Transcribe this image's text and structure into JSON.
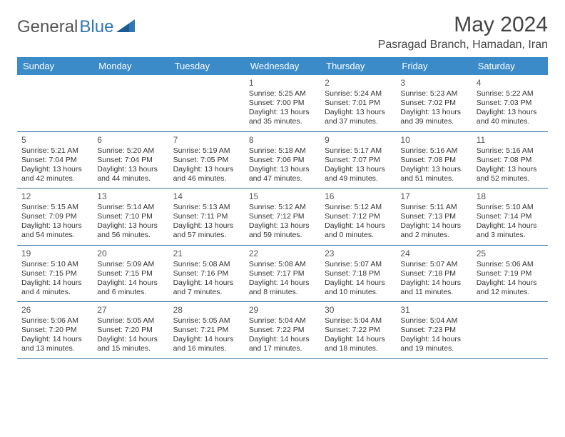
{
  "logo": {
    "text1": "General",
    "text2": "Blue"
  },
  "title": "May 2024",
  "subtitle": "Pasragad Branch, Hamadan, Iran",
  "colors": {
    "header_bg": "#3b8bc9",
    "header_text": "#ffffff",
    "divider": "#3b6fa0",
    "body_text": "#333333",
    "logo_gray": "#555555",
    "logo_blue": "#2f76b5",
    "page_bg": "#ffffff"
  },
  "fonts": {
    "title_size": 30,
    "subtitle_size": 16,
    "weekday_size": 13,
    "daynum_size": 12,
    "body_size": 10.5
  },
  "weekdays": [
    "Sunday",
    "Monday",
    "Tuesday",
    "Wednesday",
    "Thursday",
    "Friday",
    "Saturday"
  ],
  "weeks": [
    [
      {
        "n": "",
        "sr": "",
        "ss": "",
        "dl1": "",
        "dl2": ""
      },
      {
        "n": "",
        "sr": "",
        "ss": "",
        "dl1": "",
        "dl2": ""
      },
      {
        "n": "",
        "sr": "",
        "ss": "",
        "dl1": "",
        "dl2": ""
      },
      {
        "n": "1",
        "sr": "Sunrise: 5:25 AM",
        "ss": "Sunset: 7:00 PM",
        "dl1": "Daylight: 13 hours",
        "dl2": "and 35 minutes."
      },
      {
        "n": "2",
        "sr": "Sunrise: 5:24 AM",
        "ss": "Sunset: 7:01 PM",
        "dl1": "Daylight: 13 hours",
        "dl2": "and 37 minutes."
      },
      {
        "n": "3",
        "sr": "Sunrise: 5:23 AM",
        "ss": "Sunset: 7:02 PM",
        "dl1": "Daylight: 13 hours",
        "dl2": "and 39 minutes."
      },
      {
        "n": "4",
        "sr": "Sunrise: 5:22 AM",
        "ss": "Sunset: 7:03 PM",
        "dl1": "Daylight: 13 hours",
        "dl2": "and 40 minutes."
      }
    ],
    [
      {
        "n": "5",
        "sr": "Sunrise: 5:21 AM",
        "ss": "Sunset: 7:04 PM",
        "dl1": "Daylight: 13 hours",
        "dl2": "and 42 minutes."
      },
      {
        "n": "6",
        "sr": "Sunrise: 5:20 AM",
        "ss": "Sunset: 7:04 PM",
        "dl1": "Daylight: 13 hours",
        "dl2": "and 44 minutes."
      },
      {
        "n": "7",
        "sr": "Sunrise: 5:19 AM",
        "ss": "Sunset: 7:05 PM",
        "dl1": "Daylight: 13 hours",
        "dl2": "and 46 minutes."
      },
      {
        "n": "8",
        "sr": "Sunrise: 5:18 AM",
        "ss": "Sunset: 7:06 PM",
        "dl1": "Daylight: 13 hours",
        "dl2": "and 47 minutes."
      },
      {
        "n": "9",
        "sr": "Sunrise: 5:17 AM",
        "ss": "Sunset: 7:07 PM",
        "dl1": "Daylight: 13 hours",
        "dl2": "and 49 minutes."
      },
      {
        "n": "10",
        "sr": "Sunrise: 5:16 AM",
        "ss": "Sunset: 7:08 PM",
        "dl1": "Daylight: 13 hours",
        "dl2": "and 51 minutes."
      },
      {
        "n": "11",
        "sr": "Sunrise: 5:16 AM",
        "ss": "Sunset: 7:08 PM",
        "dl1": "Daylight: 13 hours",
        "dl2": "and 52 minutes."
      }
    ],
    [
      {
        "n": "12",
        "sr": "Sunrise: 5:15 AM",
        "ss": "Sunset: 7:09 PM",
        "dl1": "Daylight: 13 hours",
        "dl2": "and 54 minutes."
      },
      {
        "n": "13",
        "sr": "Sunrise: 5:14 AM",
        "ss": "Sunset: 7:10 PM",
        "dl1": "Daylight: 13 hours",
        "dl2": "and 56 minutes."
      },
      {
        "n": "14",
        "sr": "Sunrise: 5:13 AM",
        "ss": "Sunset: 7:11 PM",
        "dl1": "Daylight: 13 hours",
        "dl2": "and 57 minutes."
      },
      {
        "n": "15",
        "sr": "Sunrise: 5:12 AM",
        "ss": "Sunset: 7:12 PM",
        "dl1": "Daylight: 13 hours",
        "dl2": "and 59 minutes."
      },
      {
        "n": "16",
        "sr": "Sunrise: 5:12 AM",
        "ss": "Sunset: 7:12 PM",
        "dl1": "Daylight: 14 hours",
        "dl2": "and 0 minutes."
      },
      {
        "n": "17",
        "sr": "Sunrise: 5:11 AM",
        "ss": "Sunset: 7:13 PM",
        "dl1": "Daylight: 14 hours",
        "dl2": "and 2 minutes."
      },
      {
        "n": "18",
        "sr": "Sunrise: 5:10 AM",
        "ss": "Sunset: 7:14 PM",
        "dl1": "Daylight: 14 hours",
        "dl2": "and 3 minutes."
      }
    ],
    [
      {
        "n": "19",
        "sr": "Sunrise: 5:10 AM",
        "ss": "Sunset: 7:15 PM",
        "dl1": "Daylight: 14 hours",
        "dl2": "and 4 minutes."
      },
      {
        "n": "20",
        "sr": "Sunrise: 5:09 AM",
        "ss": "Sunset: 7:15 PM",
        "dl1": "Daylight: 14 hours",
        "dl2": "and 6 minutes."
      },
      {
        "n": "21",
        "sr": "Sunrise: 5:08 AM",
        "ss": "Sunset: 7:16 PM",
        "dl1": "Daylight: 14 hours",
        "dl2": "and 7 minutes."
      },
      {
        "n": "22",
        "sr": "Sunrise: 5:08 AM",
        "ss": "Sunset: 7:17 PM",
        "dl1": "Daylight: 14 hours",
        "dl2": "and 8 minutes."
      },
      {
        "n": "23",
        "sr": "Sunrise: 5:07 AM",
        "ss": "Sunset: 7:18 PM",
        "dl1": "Daylight: 14 hours",
        "dl2": "and 10 minutes."
      },
      {
        "n": "24",
        "sr": "Sunrise: 5:07 AM",
        "ss": "Sunset: 7:18 PM",
        "dl1": "Daylight: 14 hours",
        "dl2": "and 11 minutes."
      },
      {
        "n": "25",
        "sr": "Sunrise: 5:06 AM",
        "ss": "Sunset: 7:19 PM",
        "dl1": "Daylight: 14 hours",
        "dl2": "and 12 minutes."
      }
    ],
    [
      {
        "n": "26",
        "sr": "Sunrise: 5:06 AM",
        "ss": "Sunset: 7:20 PM",
        "dl1": "Daylight: 14 hours",
        "dl2": "and 13 minutes."
      },
      {
        "n": "27",
        "sr": "Sunrise: 5:05 AM",
        "ss": "Sunset: 7:20 PM",
        "dl1": "Daylight: 14 hours",
        "dl2": "and 15 minutes."
      },
      {
        "n": "28",
        "sr": "Sunrise: 5:05 AM",
        "ss": "Sunset: 7:21 PM",
        "dl1": "Daylight: 14 hours",
        "dl2": "and 16 minutes."
      },
      {
        "n": "29",
        "sr": "Sunrise: 5:04 AM",
        "ss": "Sunset: 7:22 PM",
        "dl1": "Daylight: 14 hours",
        "dl2": "and 17 minutes."
      },
      {
        "n": "30",
        "sr": "Sunrise: 5:04 AM",
        "ss": "Sunset: 7:22 PM",
        "dl1": "Daylight: 14 hours",
        "dl2": "and 18 minutes."
      },
      {
        "n": "31",
        "sr": "Sunrise: 5:04 AM",
        "ss": "Sunset: 7:23 PM",
        "dl1": "Daylight: 14 hours",
        "dl2": "and 19 minutes."
      },
      {
        "n": "",
        "sr": "",
        "ss": "",
        "dl1": "",
        "dl2": ""
      }
    ]
  ]
}
